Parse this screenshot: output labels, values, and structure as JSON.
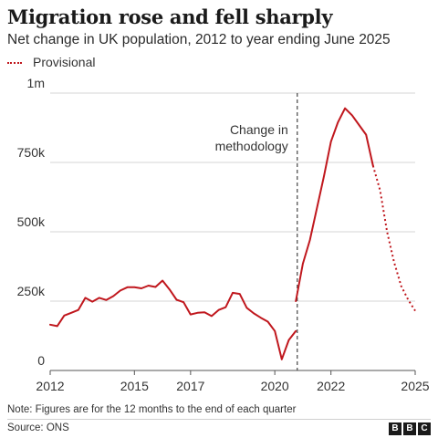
{
  "chart_data": {
    "type": "line",
    "title": "Migration rose and fell sharply",
    "subtitle": "Net change in UK population, 2012 to year ending June 2025",
    "xlim": [
      2012,
      2025
    ],
    "ylim": [
      0,
      1000000
    ],
    "y_ticks": [
      0,
      250000,
      500000,
      750000,
      1000000
    ],
    "y_tick_labels": [
      "0",
      "250k",
      "500k",
      "750k",
      "1m"
    ],
    "x_ticks": [
      2012,
      2015,
      2017,
      2020,
      2022,
      2025
    ],
    "x_tick_labels": [
      "2012",
      "2015",
      "2017",
      "2020",
      "2022",
      "2025"
    ],
    "grid": "horizontal",
    "legend": {
      "position": "top-left",
      "entries": [
        {
          "label": "Provisional",
          "style": "dotted"
        }
      ]
    },
    "line_color": "#c0171d",
    "methodology_break": {
      "x": 2020.8,
      "label_lines": [
        "Change in",
        "methodology"
      ]
    },
    "series": [
      {
        "style": "solid",
        "x": [
          2012.0,
          2012.25,
          2012.5,
          2012.75,
          2013.0,
          2013.25,
          2013.5,
          2013.75,
          2014.0,
          2014.25,
          2014.5,
          2014.75,
          2015.0,
          2015.25,
          2015.5,
          2015.75,
          2016.0,
          2016.25,
          2016.5,
          2016.75,
          2017.0,
          2017.25,
          2017.5,
          2017.75,
          2018.0,
          2018.25,
          2018.5,
          2018.75,
          2019.0,
          2019.25,
          2019.5,
          2019.75,
          2020.0,
          2020.25,
          2020.5,
          2020.75
        ],
        "y": [
          165000,
          160000,
          198000,
          208000,
          218000,
          262000,
          248000,
          262000,
          254000,
          268000,
          288000,
          300000,
          300000,
          296000,
          306000,
          301000,
          324000,
          292000,
          255000,
          246000,
          202000,
          208000,
          210000,
          196000,
          218000,
          228000,
          280000,
          276000,
          226000,
          206000,
          190000,
          176000,
          142000,
          40000,
          110000,
          142000
        ]
      },
      {
        "style": "solid",
        "x": [
          2020.75,
          2021.0,
          2021.25,
          2021.5,
          2021.75,
          2022.0,
          2022.25,
          2022.5,
          2022.75,
          2023.0,
          2023.25,
          2023.5
        ],
        "y": [
          250000,
          385000,
          470000,
          585000,
          700000,
          825000,
          895000,
          945000,
          920000,
          885000,
          850000,
          738000
        ]
      },
      {
        "style": "dotted",
        "x": [
          2023.5,
          2023.75,
          2024.0,
          2024.25,
          2024.5,
          2024.75,
          2025.0
        ],
        "y": [
          738000,
          650000,
          500000,
          390000,
          305000,
          255000,
          215000
        ]
      }
    ]
  },
  "footnote": "Note: Figures are for the 12 months to the end of each quarter",
  "source": "Source: ONS",
  "logo": {
    "letters": [
      "B",
      "B",
      "C"
    ]
  }
}
